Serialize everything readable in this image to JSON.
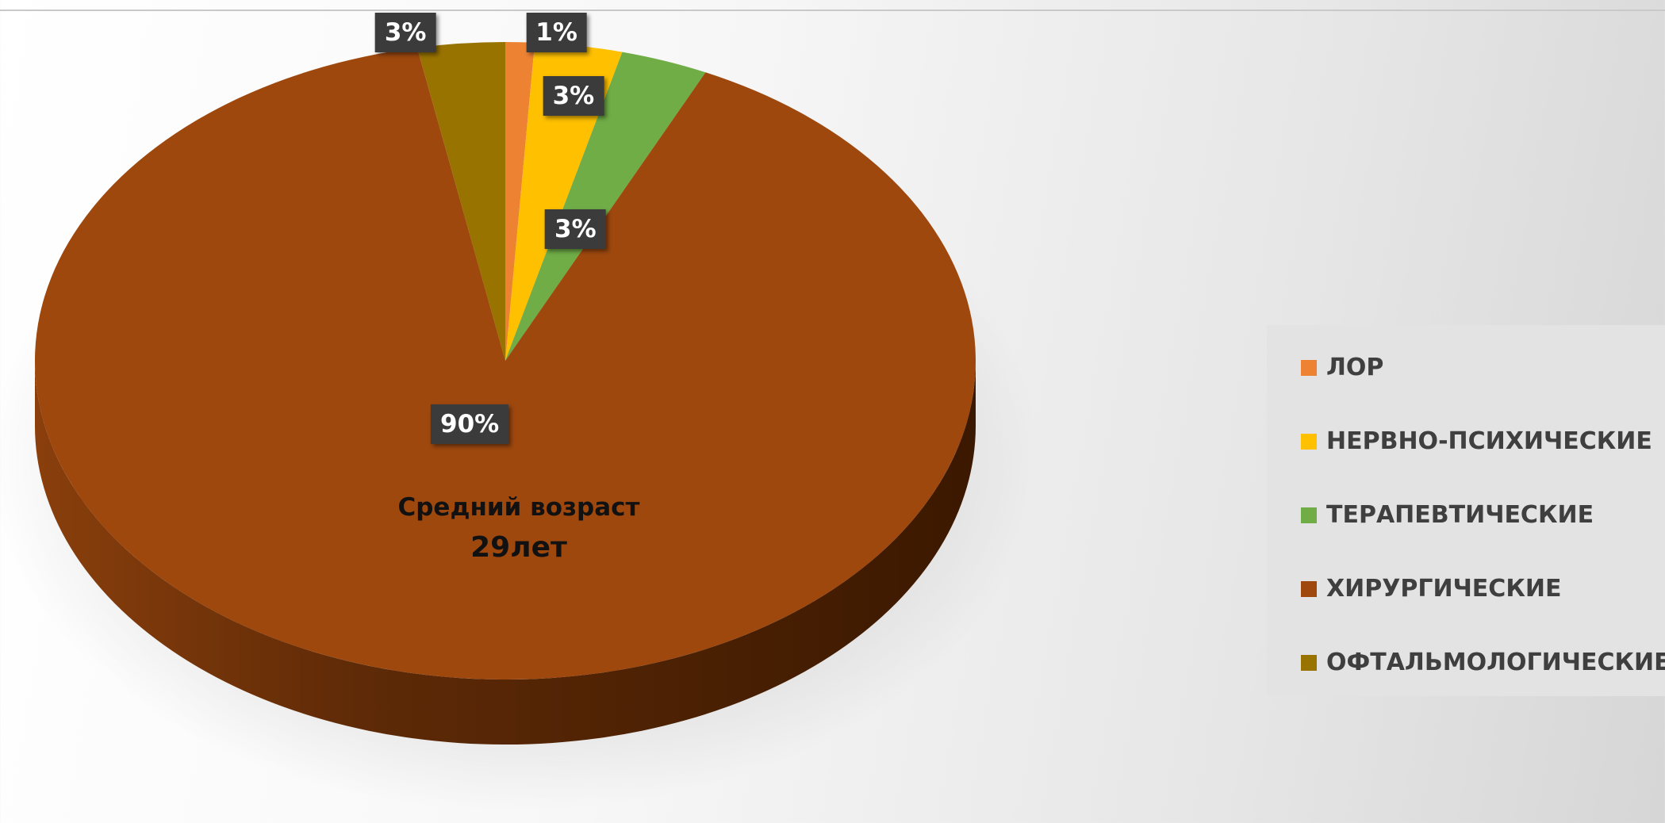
{
  "chart_data": {
    "type": "pie",
    "title": "",
    "categories": [
      "ЛОР",
      "НЕРВНО-ПСИХИЧЕСКИЕ",
      "ТЕРАПЕВТИЧЕСКИЕ",
      "ХИРУРГИЧЕСКИЕ",
      "ОФТАЛЬМОЛОГИЧЕСКИЕ"
    ],
    "values": [
      1,
      3,
      3,
      90,
      3
    ],
    "data_labels": [
      "1%",
      "3%",
      "3%",
      "90%",
      "3%"
    ],
    "colors": [
      "#ee8233",
      "#ffc000",
      "#70ad47",
      "#9e480e",
      "#997300"
    ],
    "legend_position": "right",
    "style": "3d-pie",
    "center_annotation": {
      "title": "Средний возраст",
      "value": "29лет"
    }
  }
}
